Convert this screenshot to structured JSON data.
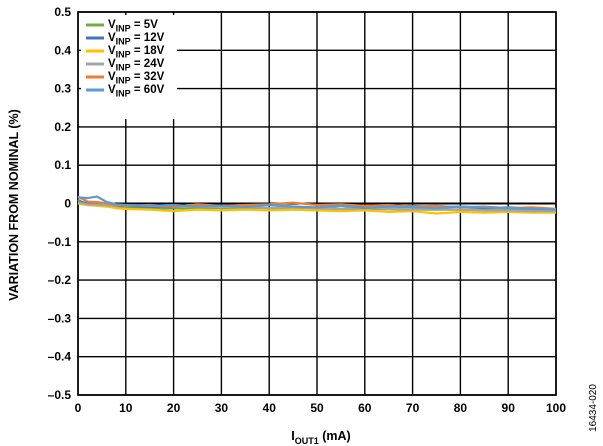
{
  "chart_data": {
    "type": "line",
    "title": "",
    "xlabel": {
      "main": "I",
      "sub": "OUT1",
      "unit": " (mA)"
    },
    "ylabel": "VARIATION FROM NOMINAL (%)",
    "xlim": [
      0,
      100
    ],
    "ylim": [
      -0.5,
      0.5
    ],
    "xticks": [
      0,
      10,
      20,
      30,
      40,
      50,
      60,
      70,
      80,
      90,
      100
    ],
    "yticks": [
      0.5,
      0.4,
      0.3,
      0.2,
      0.1,
      0,
      -0.1,
      -0.2,
      -0.3,
      -0.4,
      -0.5
    ],
    "ytick_labels": [
      "0.5",
      "0.4",
      "0.3",
      "0.2",
      "0.1",
      "0",
      "–0.1",
      "–0.2",
      "–0.3",
      "–0.4",
      "–0.5"
    ],
    "grid": true,
    "legend_position": "top-left",
    "series": [
      {
        "name": "V_INP = 5V",
        "legend": {
          "pre": "V",
          "sub": "INP",
          "post": " = 5V"
        },
        "color": "#70ad47",
        "x": [
          0,
          2,
          4,
          6,
          8,
          10,
          15,
          20,
          25,
          30,
          35,
          40,
          45,
          50,
          55,
          60,
          65,
          70,
          75,
          80,
          85,
          90,
          95,
          100
        ],
        "y": [
          0.01,
          -0.004,
          -0.005,
          -0.006,
          -0.008,
          -0.01,
          -0.012,
          -0.013,
          -0.012,
          -0.012,
          -0.013,
          -0.012,
          -0.014,
          -0.013,
          -0.014,
          -0.015,
          -0.015,
          -0.016,
          -0.016,
          -0.016,
          -0.017,
          -0.017,
          -0.018,
          -0.019
        ]
      },
      {
        "name": "V_INP = 12V",
        "legend": {
          "pre": "V",
          "sub": "INP",
          "post": " = 12V"
        },
        "color": "#4472c4",
        "x": [
          0,
          2,
          4,
          6,
          8,
          10,
          15,
          20,
          25,
          30,
          35,
          40,
          45,
          50,
          55,
          60,
          65,
          70,
          75,
          80,
          85,
          90,
          95,
          100
        ],
        "y": [
          0.005,
          0.001,
          0.0,
          -0.004,
          -0.008,
          -0.006,
          -0.008,
          -0.01,
          -0.004,
          -0.01,
          -0.006,
          -0.004,
          -0.008,
          -0.012,
          -0.006,
          -0.01,
          -0.008,
          -0.006,
          -0.01,
          -0.008,
          -0.012,
          -0.01,
          -0.014,
          -0.016
        ]
      },
      {
        "name": "V_INP = 18V",
        "legend": {
          "pre": "V",
          "sub": "INP",
          "post": " = 18V"
        },
        "color": "#ffc000",
        "x": [
          0,
          2,
          4,
          6,
          8,
          10,
          15,
          20,
          25,
          30,
          35,
          40,
          45,
          50,
          55,
          60,
          65,
          70,
          75,
          80,
          85,
          90,
          95,
          100
        ],
        "y": [
          0.0,
          -0.004,
          -0.006,
          -0.008,
          -0.012,
          -0.014,
          -0.016,
          -0.02,
          -0.016,
          -0.018,
          -0.016,
          -0.018,
          -0.016,
          -0.018,
          -0.02,
          -0.018,
          -0.022,
          -0.02,
          -0.026,
          -0.022,
          -0.024,
          -0.022,
          -0.024,
          -0.024
        ]
      },
      {
        "name": "V_INP = 24V",
        "legend": {
          "pre": "V",
          "sub": "INP",
          "post": " = 24V"
        },
        "color": "#a5a5a5",
        "x": [
          0,
          2,
          4,
          6,
          8,
          10,
          15,
          20,
          25,
          30,
          35,
          40,
          45,
          50,
          55,
          60,
          65,
          70,
          75,
          80,
          85,
          90,
          95,
          100
        ],
        "y": [
          0.003,
          -0.002,
          -0.003,
          -0.005,
          -0.006,
          -0.004,
          -0.006,
          -0.008,
          -0.008,
          -0.01,
          -0.01,
          -0.012,
          -0.01,
          -0.012,
          -0.014,
          -0.012,
          -0.014,
          -0.016,
          -0.014,
          -0.016,
          -0.018,
          -0.018,
          -0.02,
          -0.02
        ]
      },
      {
        "name": "V_INP = 32V",
        "legend": {
          "pre": "V",
          "sub": "INP",
          "post": " = 32V"
        },
        "color": "#ed7d31",
        "x": [
          0,
          2,
          4,
          6,
          8,
          10,
          15,
          20,
          25,
          30,
          35,
          40,
          45,
          50,
          55,
          60,
          65,
          70,
          75,
          80,
          85,
          90,
          95,
          100
        ],
        "y": [
          0.018,
          0.005,
          0.004,
          0.0,
          -0.004,
          -0.006,
          -0.004,
          -0.008,
          -0.002,
          -0.006,
          -0.004,
          -0.002,
          0.002,
          -0.004,
          -0.002,
          -0.006,
          -0.004,
          -0.008,
          -0.006,
          -0.01,
          -0.008,
          -0.012,
          -0.01,
          -0.014
        ]
      },
      {
        "name": "V_INP = 60V",
        "legend": {
          "pre": "V",
          "sub": "INP",
          "post": " = 60V"
        },
        "color": "#5b9bd5",
        "x": [
          0,
          2,
          4,
          6,
          8,
          10,
          15,
          20,
          25,
          30,
          35,
          40,
          45,
          50,
          55,
          60,
          65,
          70,
          75,
          80,
          85,
          90,
          95,
          100
        ],
        "y": [
          0.016,
          0.014,
          0.018,
          0.004,
          -0.002,
          -0.004,
          -0.006,
          -0.004,
          -0.008,
          -0.006,
          -0.01,
          -0.004,
          -0.008,
          -0.01,
          -0.006,
          -0.012,
          -0.008,
          -0.01,
          -0.012,
          -0.008,
          -0.01,
          -0.012,
          -0.014,
          -0.016
        ]
      }
    ]
  },
  "figure_id": "16434-020"
}
